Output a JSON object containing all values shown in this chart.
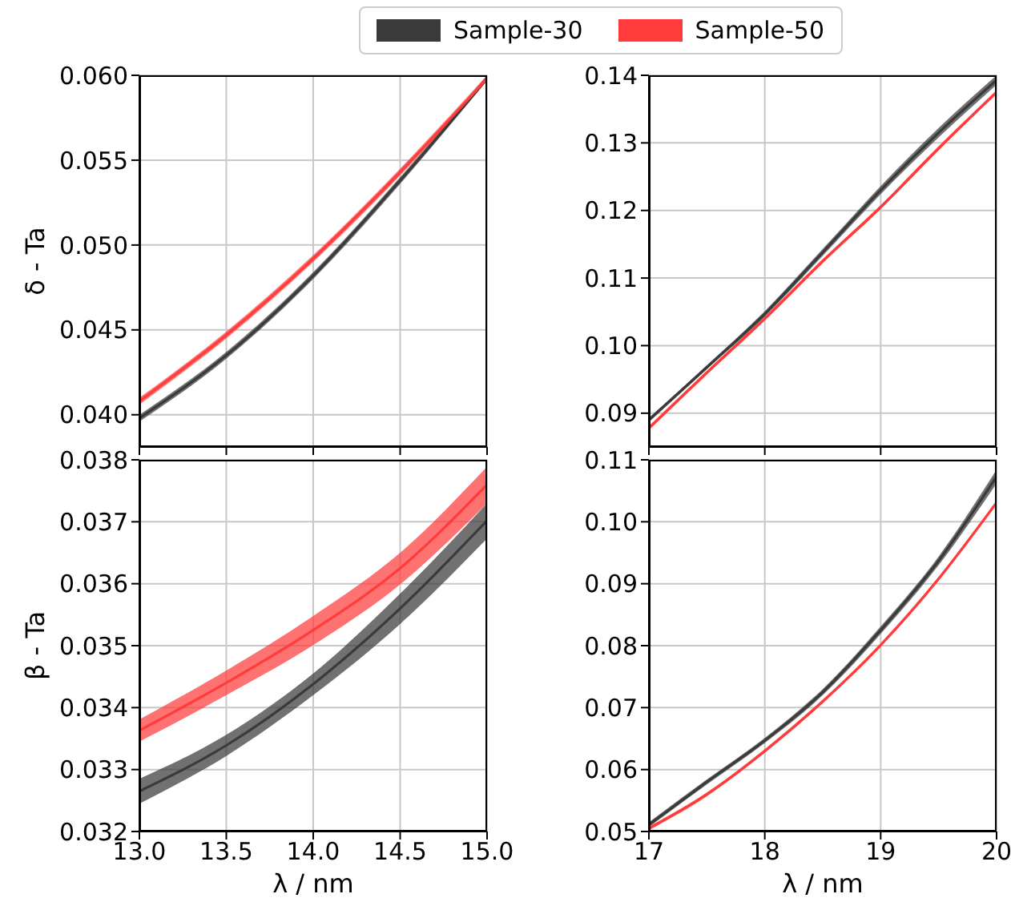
{
  "chart_data": [
    {
      "type": "line",
      "ylabel": "δ - Ta",
      "legend": "top",
      "grid": true,
      "tick_labels": "y",
      "x": [
        13,
        13.5,
        14,
        14.5,
        15
      ],
      "xlim": [
        13,
        15
      ],
      "xticks": [
        13,
        13.5,
        14,
        14.5,
        15
      ],
      "ylim": [
        0.0381,
        0.06
      ],
      "yticks": [
        {
          "value": 0.04,
          "label": "0.040"
        },
        {
          "value": 0.045,
          "label": "0.045"
        },
        {
          "value": 0.05,
          "label": "0.050"
        },
        {
          "value": 0.055,
          "label": "0.055"
        },
        {
          "value": 0.06,
          "label": "0.060"
        }
      ],
      "series": [
        {
          "name": "Sample-30",
          "color": "#3a3a3a",
          "values": [
            0.0398,
            0.0435,
            0.0482,
            0.0538,
            0.0598
          ],
          "lower": [
            0.0396,
            0.0433,
            0.048,
            0.0536,
            0.0597
          ],
          "upper": [
            0.04,
            0.0437,
            0.0484,
            0.054,
            0.06
          ]
        },
        {
          "name": "Sample-50",
          "color": "#ff3b3b",
          "values": [
            0.0408,
            0.0447,
            0.0492,
            0.0543,
            0.0598
          ],
          "lower": [
            0.0406,
            0.0445,
            0.049,
            0.0541,
            0.0597
          ],
          "upper": [
            0.041,
            0.0449,
            0.0494,
            0.0545,
            0.06
          ]
        }
      ]
    },
    {
      "type": "line",
      "grid": true,
      "tick_labels": "y",
      "x": [
        17,
        17.5,
        18,
        18.5,
        19,
        19.5,
        20
      ],
      "xlim": [
        17,
        20
      ],
      "xticks": [
        17,
        18,
        19,
        20
      ],
      "ylim": [
        0.085,
        0.14
      ],
      "yticks": [
        {
          "value": 0.09,
          "label": "0.09"
        },
        {
          "value": 0.1,
          "label": "0.10"
        },
        {
          "value": 0.11,
          "label": "0.11"
        },
        {
          "value": 0.12,
          "label": "0.12"
        },
        {
          "value": 0.13,
          "label": "0.13"
        },
        {
          "value": 0.14,
          "label": "0.14"
        }
      ],
      "series": [
        {
          "color": "#3a3a3a",
          "values": [
            0.089,
            0.0968,
            0.1047,
            0.1138,
            0.123,
            0.1315,
            0.1393
          ],
          "lower": [
            0.0887,
            0.0965,
            0.1043,
            0.1133,
            0.1224,
            0.1308,
            0.1386
          ],
          "upper": [
            0.0893,
            0.0971,
            0.1051,
            0.1143,
            0.1236,
            0.1322,
            0.14
          ]
        },
        {
          "color": "#ff3b3b",
          "values": [
            0.0878,
            0.096,
            0.104,
            0.1125,
            0.1205,
            0.1292,
            0.1375
          ],
          "lower": [
            0.0875,
            0.0957,
            0.1037,
            0.1122,
            0.1202,
            0.1289,
            0.1372
          ],
          "upper": [
            0.0881,
            0.0963,
            0.1043,
            0.1128,
            0.1208,
            0.1295,
            0.1378
          ]
        }
      ]
    },
    {
      "type": "line",
      "ylabel": "β - Ta",
      "xlabel": "λ / nm",
      "grid": true,
      "x": [
        13,
        13.5,
        14,
        14.5,
        15
      ],
      "xlim": [
        13,
        15
      ],
      "xticks": [
        {
          "value": 13,
          "label": "13.0"
        },
        {
          "value": 13.5,
          "label": "13.5"
        },
        {
          "value": 14,
          "label": "14.0"
        },
        {
          "value": 14.5,
          "label": "14.5"
        },
        {
          "value": 15,
          "label": "15.0"
        }
      ],
      "ylim": [
        0.032,
        0.038
      ],
      "yticks": [
        {
          "value": 0.032,
          "label": "0.032"
        },
        {
          "value": 0.033,
          "label": "0.033"
        },
        {
          "value": 0.034,
          "label": "0.034"
        },
        {
          "value": 0.035,
          "label": "0.035"
        },
        {
          "value": 0.036,
          "label": "0.036"
        },
        {
          "value": 0.037,
          "label": "0.037"
        },
        {
          "value": 0.038,
          "label": "0.038"
        }
      ],
      "series": [
        {
          "color": "#3a3a3a",
          "values": [
            0.03265,
            0.03339,
            0.03438,
            0.0356,
            0.03702
          ],
          "lower": [
            0.03245,
            0.03322,
            0.0342,
            0.03535,
            0.03673
          ],
          "upper": [
            0.03285,
            0.03356,
            0.03455,
            0.03584,
            0.0373
          ]
        },
        {
          "color": "#ff3b3b",
          "values": [
            0.03363,
            0.0344,
            0.03525,
            0.03625,
            0.0376
          ],
          "lower": [
            0.03345,
            0.0342,
            0.03501,
            0.03599,
            0.0373
          ],
          "upper": [
            0.03381,
            0.0346,
            0.03548,
            0.0365,
            0.03789
          ]
        }
      ]
    },
    {
      "type": "line",
      "xlabel": "λ / nm",
      "grid": true,
      "x": [
        17,
        17.5,
        18,
        18.5,
        19,
        19.5,
        20
      ],
      "xlim": [
        17,
        20
      ],
      "xticks": [
        17,
        18,
        19,
        20
      ],
      "ylim": [
        0.05,
        0.11
      ],
      "yticks": [
        {
          "value": 0.05,
          "label": "0.05"
        },
        {
          "value": 0.06,
          "label": "0.06"
        },
        {
          "value": 0.07,
          "label": "0.07"
        },
        {
          "value": 0.08,
          "label": "0.08"
        },
        {
          "value": 0.09,
          "label": "0.09"
        },
        {
          "value": 0.1,
          "label": "0.10"
        },
        {
          "value": 0.11,
          "label": "0.11"
        }
      ],
      "series": [
        {
          "color": "#3a3a3a",
          "values": [
            0.0511,
            0.058,
            0.0647,
            0.0725,
            0.0825,
            0.0937,
            0.1073
          ],
          "lower": [
            0.0507,
            0.0576,
            0.0643,
            0.072,
            0.0819,
            0.093,
            0.1062
          ],
          "upper": [
            0.0515,
            0.0584,
            0.0651,
            0.073,
            0.0831,
            0.0944,
            0.1084
          ]
        },
        {
          "color": "#ff3b3b",
          "values": [
            0.0505,
            0.056,
            0.063,
            0.071,
            0.0801,
            0.0908,
            0.1031
          ],
          "lower": [
            0.0502,
            0.0557,
            0.0627,
            0.0707,
            0.0798,
            0.0905,
            0.1028
          ],
          "upper": [
            0.0508,
            0.0563,
            0.0633,
            0.0713,
            0.0804,
            0.0911,
            0.1034
          ]
        }
      ]
    }
  ]
}
